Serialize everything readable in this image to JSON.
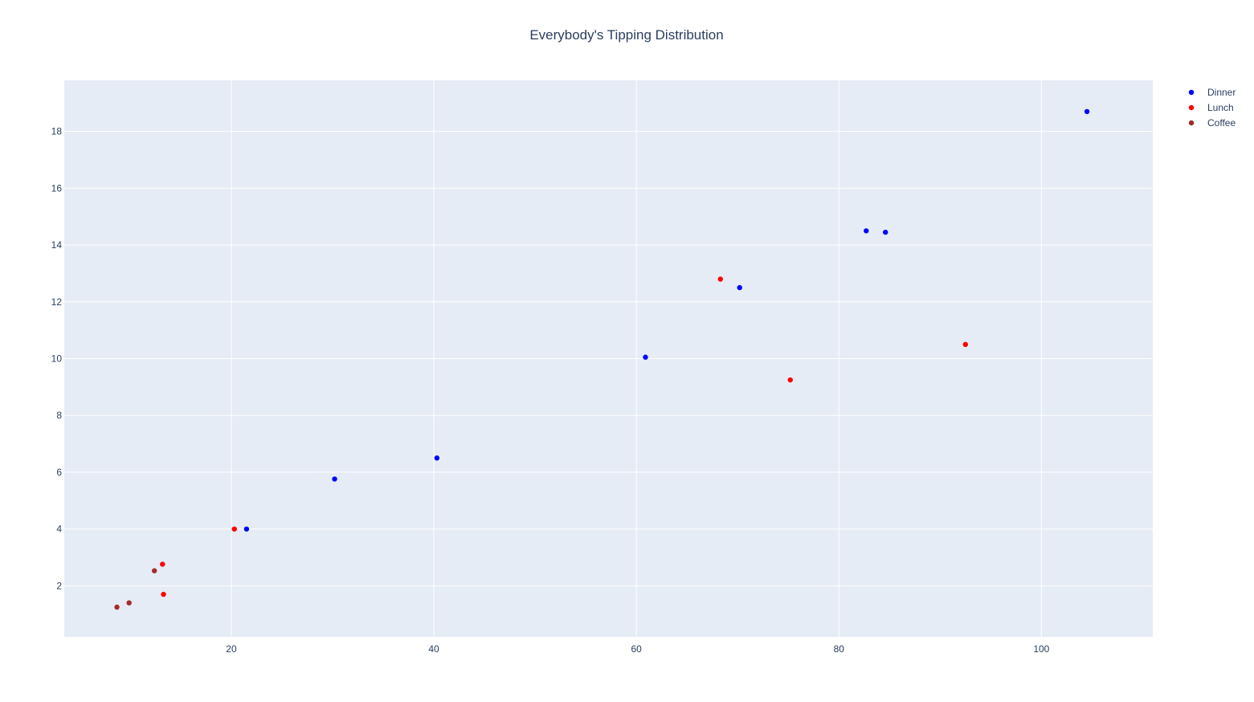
{
  "chart_data": {
    "type": "scatter",
    "title": "Everybody's Tipping Distribution",
    "xlabel": "",
    "ylabel": "",
    "xlim": [
      3.5,
      111
    ],
    "ylim": [
      0.2,
      19.8
    ],
    "x_ticks": [
      20,
      40,
      60,
      80,
      100
    ],
    "y_ticks": [
      2,
      4,
      6,
      8,
      10,
      12,
      14,
      16,
      18
    ],
    "grid": true,
    "legend_position": "top-right",
    "plot_background": "#e5ecf6",
    "series": [
      {
        "name": "Dinner",
        "color": "#0000ff",
        "points": [
          {
            "x": 21.5,
            "y": 4.0
          },
          {
            "x": 30.2,
            "y": 5.76
          },
          {
            "x": 40.3,
            "y": 6.5
          },
          {
            "x": 60.9,
            "y": 10.05
          },
          {
            "x": 70.2,
            "y": 12.5
          },
          {
            "x": 82.7,
            "y": 14.5
          },
          {
            "x": 84.6,
            "y": 14.45
          },
          {
            "x": 104.5,
            "y": 18.7
          }
        ]
      },
      {
        "name": "Lunch",
        "color": "#ff0000",
        "points": [
          {
            "x": 13.2,
            "y": 2.76
          },
          {
            "x": 13.3,
            "y": 1.7
          },
          {
            "x": 20.3,
            "y": 4.0
          },
          {
            "x": 68.3,
            "y": 12.8
          },
          {
            "x": 75.2,
            "y": 9.25
          },
          {
            "x": 92.5,
            "y": 10.5
          }
        ]
      },
      {
        "name": "Coffee",
        "color": "#a52a2a",
        "points": [
          {
            "x": 8.7,
            "y": 1.25
          },
          {
            "x": 9.9,
            "y": 1.4
          },
          {
            "x": 12.4,
            "y": 2.53
          }
        ]
      }
    ]
  }
}
